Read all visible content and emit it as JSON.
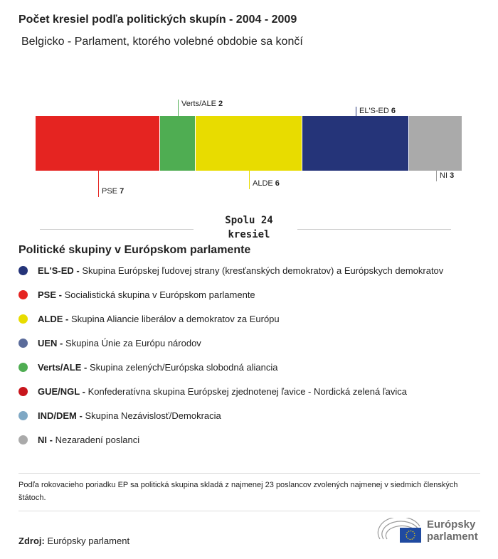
{
  "title": "Počet kresiel podľa politických skupín - 2004 - 2009",
  "subtitle": "Belgicko - Parlament, ktorého volebné obdobie sa končí",
  "chart_data": {
    "type": "bar",
    "orientation": "stacked-horizontal",
    "categories": [
      "PSE",
      "Verts/ALE",
      "ALDE",
      "EL'S-ED",
      "NI"
    ],
    "values": [
      7,
      2,
      6,
      6,
      3
    ],
    "colors": [
      "#e52421",
      "#4fad52",
      "#e8dc00",
      "#253479",
      "#aaaaaa"
    ],
    "total_label": "Spolu 24 kresiel"
  },
  "legend": {
    "title": "Politické skupiny v Európskom parlamente",
    "items": [
      {
        "abbr": "EL'S-ED -",
        "desc": "Skupina Európskej ľudovej strany (kresťanských demokratov) a Európskych demokratov",
        "color": "#253479"
      },
      {
        "abbr": "PSE -",
        "desc": "Socialistická skupina v Európskom parlamente",
        "color": "#e52421"
      },
      {
        "abbr": "ALDE -",
        "desc": "Skupina Aliancie liberálov a demokratov za Európu",
        "color": "#e8dc00"
      },
      {
        "abbr": "UEN -",
        "desc": "Skupina Únie za Európu národov",
        "color": "#5a6b9a"
      },
      {
        "abbr": "Verts/ALE -",
        "desc": "Skupina zelených/Európska slobodná aliancia",
        "color": "#4fad52"
      },
      {
        "abbr": "GUE/NGL -",
        "desc": "Konfederatívna skupina Európskej zjednotenej ľavice - Nordická zelená ľavica",
        "color": "#c8161d"
      },
      {
        "abbr": "IND/DEM -",
        "desc": "Skupina Nezávislosť/Demokracia",
        "color": "#7fa8c4"
      },
      {
        "abbr": "NI -",
        "desc": "Nezaradení poslanci",
        "color": "#aaaaaa"
      }
    ]
  },
  "note": "Podľa rokovacieho poriadku EP sa politická skupina skladá z najmenej 23 poslancov zvolených najmenej v siedmich členských štátoch.",
  "source": {
    "label": "Zdroj:",
    "value": "Európsky parlament"
  },
  "logo": {
    "line1": "Európsky",
    "line2": "parlament"
  }
}
